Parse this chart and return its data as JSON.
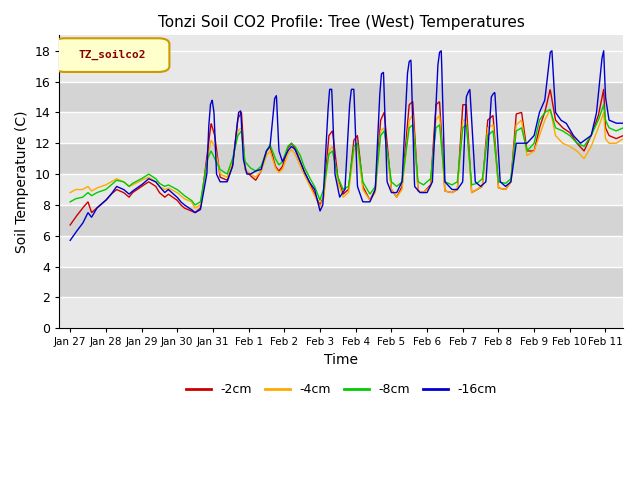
{
  "title": "Tonzi Soil CO2 Profile: Tree (West) Temperatures",
  "xlabel": "Time",
  "ylabel": "Soil Temperature (C)",
  "ylim": [
    0,
    19
  ],
  "xlim_days": [
    0,
    15.5
  ],
  "legend_label": "TZ_soilco2",
  "series_labels": [
    "-2cm",
    "-4cm",
    "-8cm",
    "-16cm"
  ],
  "series_colors": [
    "#cc0000",
    "#ffaa00",
    "#00cc00",
    "#0000cc"
  ],
  "tick_labels": [
    "Jan 27",
    "Jan 28",
    "Jan 29",
    "Jan 30",
    "Jan 31",
    "Feb 1",
    "Feb 2",
    "Feb 3",
    "Feb 4",
    "Feb 5",
    "Feb 6",
    "Feb 7",
    "Feb 8",
    "Feb 9",
    "Feb 10",
    "Feb 11"
  ],
  "background_color": "#ffffff",
  "plot_bg_even": "#e8e8e8",
  "plot_bg_odd": "#d8d8d8",
  "grid_color": "#ffffff",
  "yticks": [
    0,
    2,
    4,
    6,
    8,
    10,
    12,
    14,
    16,
    18
  ]
}
